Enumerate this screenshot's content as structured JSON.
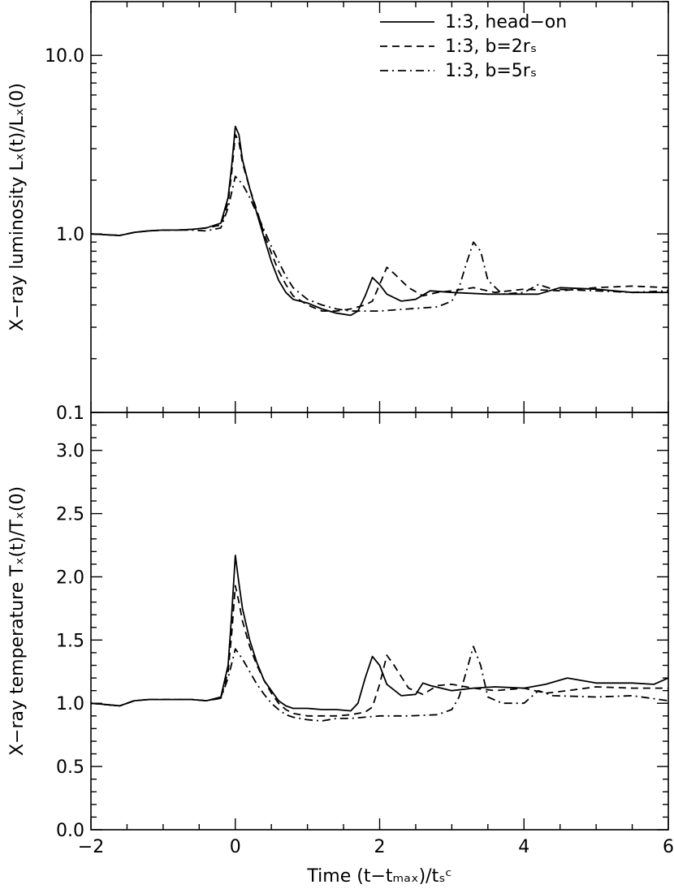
{
  "chart_data": [
    {
      "type": "line",
      "panel": "top",
      "yscale": "log",
      "xlim": [
        -2,
        6
      ],
      "ylim": [
        0.1,
        20
      ],
      "ylabel": "X−ray luminosity Lₓ(t)/Lₓ(0)",
      "xlabel": "",
      "yticks": [
        0.1,
        1.0,
        10.0
      ],
      "yticklabels": [
        "0.1",
        "1.0",
        "10.0"
      ],
      "grid": false,
      "legend": {
        "placement": "top-right",
        "entries": [
          "1:3, head−on",
          "1:3, b=2rₛ",
          "1:3, b=5rₛ"
        ]
      },
      "series": [
        {
          "name": "1:3, head−on",
          "dash": "solid",
          "points": [
            [
              -2,
              1.0
            ],
            [
              -1.8,
              0.99
            ],
            [
              -1.6,
              0.98
            ],
            [
              -1.4,
              1.02
            ],
            [
              -1.2,
              1.04
            ],
            [
              -1.0,
              1.05
            ],
            [
              -0.8,
              1.05
            ],
            [
              -0.6,
              1.06
            ],
            [
              -0.4,
              1.08
            ],
            [
              -0.2,
              1.15
            ],
            [
              -0.1,
              1.6
            ],
            [
              -0.05,
              2.4
            ],
            [
              0.0,
              4.0
            ],
            [
              0.05,
              3.6
            ],
            [
              0.1,
              2.6
            ],
            [
              0.2,
              1.8
            ],
            [
              0.3,
              1.3
            ],
            [
              0.4,
              0.95
            ],
            [
              0.5,
              0.7
            ],
            [
              0.6,
              0.55
            ],
            [
              0.7,
              0.47
            ],
            [
              0.8,
              0.43
            ],
            [
              1.0,
              0.41
            ],
            [
              1.2,
              0.38
            ],
            [
              1.4,
              0.36
            ],
            [
              1.6,
              0.35
            ],
            [
              1.7,
              0.37
            ],
            [
              1.8,
              0.45
            ],
            [
              1.9,
              0.57
            ],
            [
              2.0,
              0.52
            ],
            [
              2.1,
              0.46
            ],
            [
              2.3,
              0.42
            ],
            [
              2.5,
              0.43
            ],
            [
              2.7,
              0.48
            ],
            [
              3.0,
              0.47
            ],
            [
              3.5,
              0.46
            ],
            [
              4.0,
              0.46
            ],
            [
              4.2,
              0.46
            ],
            [
              4.5,
              0.5
            ],
            [
              5.0,
              0.49
            ],
            [
              5.5,
              0.47
            ],
            [
              6.0,
              0.47
            ]
          ]
        },
        {
          "name": "1:3, b=2rₛ",
          "dash": "dashed",
          "points": [
            [
              -2,
              1.0
            ],
            [
              -1.8,
              0.99
            ],
            [
              -1.6,
              0.98
            ],
            [
              -1.4,
              1.02
            ],
            [
              -1.2,
              1.04
            ],
            [
              -1.0,
              1.05
            ],
            [
              -0.8,
              1.05
            ],
            [
              -0.6,
              1.06
            ],
            [
              -0.4,
              1.08
            ],
            [
              -0.2,
              1.12
            ],
            [
              -0.1,
              1.5
            ],
            [
              -0.05,
              2.2
            ],
            [
              0.0,
              3.6
            ],
            [
              0.05,
              3.3
            ],
            [
              0.1,
              2.5
            ],
            [
              0.2,
              1.8
            ],
            [
              0.3,
              1.35
            ],
            [
              0.4,
              1.0
            ],
            [
              0.5,
              0.78
            ],
            [
              0.6,
              0.62
            ],
            [
              0.7,
              0.52
            ],
            [
              0.8,
              0.45
            ],
            [
              1.0,
              0.4
            ],
            [
              1.2,
              0.37
            ],
            [
              1.4,
              0.37
            ],
            [
              1.6,
              0.38
            ],
            [
              1.8,
              0.4
            ],
            [
              1.9,
              0.42
            ],
            [
              2.0,
              0.52
            ],
            [
              2.1,
              0.65
            ],
            [
              2.2,
              0.6
            ],
            [
              2.4,
              0.5
            ],
            [
              2.6,
              0.45
            ],
            [
              2.8,
              0.47
            ],
            [
              3.0,
              0.48
            ],
            [
              3.3,
              0.5
            ],
            [
              3.6,
              0.47
            ],
            [
              4.0,
              0.49
            ],
            [
              4.5,
              0.48
            ],
            [
              5.0,
              0.5
            ],
            [
              5.5,
              0.51
            ],
            [
              6.0,
              0.5
            ]
          ]
        },
        {
          "name": "1:3, b=5rₛ",
          "dash": "dashdot",
          "points": [
            [
              -2,
              1.0
            ],
            [
              -1.8,
              0.99
            ],
            [
              -1.6,
              0.98
            ],
            [
              -1.4,
              1.02
            ],
            [
              -1.2,
              1.04
            ],
            [
              -1.0,
              1.05
            ],
            [
              -0.8,
              1.05
            ],
            [
              -0.6,
              1.05
            ],
            [
              -0.4,
              1.04
            ],
            [
              -0.2,
              1.08
            ],
            [
              -0.1,
              1.4
            ],
            [
              0.0,
              2.1
            ],
            [
              0.1,
              1.9
            ],
            [
              0.2,
              1.6
            ],
            [
              0.3,
              1.3
            ],
            [
              0.4,
              1.05
            ],
            [
              0.5,
              0.85
            ],
            [
              0.6,
              0.7
            ],
            [
              0.7,
              0.58
            ],
            [
              0.8,
              0.5
            ],
            [
              1.0,
              0.43
            ],
            [
              1.2,
              0.4
            ],
            [
              1.4,
              0.38
            ],
            [
              1.6,
              0.37
            ],
            [
              1.8,
              0.37
            ],
            [
              2.0,
              0.37
            ],
            [
              2.4,
              0.38
            ],
            [
              2.8,
              0.39
            ],
            [
              3.0,
              0.42
            ],
            [
              3.1,
              0.5
            ],
            [
              3.2,
              0.68
            ],
            [
              3.3,
              0.9
            ],
            [
              3.4,
              0.8
            ],
            [
              3.5,
              0.55
            ],
            [
              3.7,
              0.46
            ],
            [
              4.0,
              0.47
            ],
            [
              4.2,
              0.52
            ],
            [
              4.4,
              0.49
            ],
            [
              5.0,
              0.48
            ],
            [
              5.5,
              0.47
            ],
            [
              6.0,
              0.48
            ]
          ]
        }
      ]
    },
    {
      "type": "line",
      "panel": "bottom",
      "yscale": "linear",
      "xlim": [
        -2,
        6
      ],
      "ylim": [
        0.0,
        3.3
      ],
      "ylabel": "X−ray temperature Tₓ(t)/Tₓ(0)",
      "xlabel": "Time (t−tₘₐₓ)/tₛᶜ",
      "yticks": [
        0.0,
        0.5,
        1.0,
        1.5,
        2.0,
        2.5,
        3.0
      ],
      "yticklabels": [
        "0.0",
        "0.5",
        "1.0",
        "1.5",
        "2.0",
        "2.5",
        "3.0"
      ],
      "xticks": [
        -2,
        0,
        2,
        4,
        6
      ],
      "xticklabels": [
        "−2",
        "0",
        "2",
        "4",
        "6"
      ],
      "grid": false,
      "series": [
        {
          "name": "1:3, head−on",
          "dash": "solid",
          "points": [
            [
              -2,
              1.0
            ],
            [
              -1.8,
              0.99
            ],
            [
              -1.6,
              0.98
            ],
            [
              -1.4,
              1.02
            ],
            [
              -1.2,
              1.03
            ],
            [
              -1.0,
              1.03
            ],
            [
              -0.8,
              1.03
            ],
            [
              -0.6,
              1.03
            ],
            [
              -0.4,
              1.02
            ],
            [
              -0.2,
              1.05
            ],
            [
              -0.1,
              1.3
            ],
            [
              -0.05,
              1.7
            ],
            [
              0.0,
              2.17
            ],
            [
              0.05,
              1.95
            ],
            [
              0.1,
              1.75
            ],
            [
              0.2,
              1.5
            ],
            [
              0.3,
              1.32
            ],
            [
              0.4,
              1.18
            ],
            [
              0.5,
              1.1
            ],
            [
              0.6,
              1.02
            ],
            [
              0.7,
              0.98
            ],
            [
              0.8,
              0.96
            ],
            [
              1.0,
              0.96
            ],
            [
              1.2,
              0.95
            ],
            [
              1.4,
              0.95
            ],
            [
              1.6,
              0.94
            ],
            [
              1.7,
              1.0
            ],
            [
              1.8,
              1.2
            ],
            [
              1.9,
              1.37
            ],
            [
              2.0,
              1.3
            ],
            [
              2.1,
              1.15
            ],
            [
              2.3,
              1.06
            ],
            [
              2.5,
              1.07
            ],
            [
              2.6,
              1.16
            ],
            [
              2.7,
              1.14
            ],
            [
              3.0,
              1.1
            ],
            [
              3.3,
              1.12
            ],
            [
              3.6,
              1.13
            ],
            [
              4.0,
              1.12
            ],
            [
              4.3,
              1.15
            ],
            [
              4.6,
              1.2
            ],
            [
              5.0,
              1.16
            ],
            [
              5.5,
              1.16
            ],
            [
              5.8,
              1.15
            ],
            [
              6.0,
              1.2
            ]
          ]
        },
        {
          "name": "1:3, b=2rₛ",
          "dash": "dashed",
          "points": [
            [
              -2,
              1.0
            ],
            [
              -1.8,
              0.99
            ],
            [
              -1.6,
              0.98
            ],
            [
              -1.4,
              1.02
            ],
            [
              -1.2,
              1.03
            ],
            [
              -1.0,
              1.03
            ],
            [
              -0.8,
              1.03
            ],
            [
              -0.6,
              1.03
            ],
            [
              -0.4,
              1.02
            ],
            [
              -0.2,
              1.04
            ],
            [
              -0.1,
              1.25
            ],
            [
              -0.05,
              1.55
            ],
            [
              0.0,
              1.93
            ],
            [
              0.05,
              1.8
            ],
            [
              0.1,
              1.65
            ],
            [
              0.2,
              1.45
            ],
            [
              0.3,
              1.3
            ],
            [
              0.4,
              1.18
            ],
            [
              0.5,
              1.08
            ],
            [
              0.6,
              1.0
            ],
            [
              0.7,
              0.95
            ],
            [
              0.8,
              0.92
            ],
            [
              1.0,
              0.9
            ],
            [
              1.2,
              0.9
            ],
            [
              1.4,
              0.9
            ],
            [
              1.6,
              0.91
            ],
            [
              1.8,
              0.93
            ],
            [
              1.9,
              0.97
            ],
            [
              2.0,
              1.15
            ],
            [
              2.1,
              1.38
            ],
            [
              2.2,
              1.3
            ],
            [
              2.4,
              1.12
            ],
            [
              2.6,
              1.07
            ],
            [
              2.8,
              1.14
            ],
            [
              3.0,
              1.15
            ],
            [
              3.3,
              1.12
            ],
            [
              3.6,
              1.1
            ],
            [
              4.0,
              1.12
            ],
            [
              4.3,
              1.08
            ],
            [
              4.6,
              1.1
            ],
            [
              5.0,
              1.13
            ],
            [
              5.5,
              1.12
            ],
            [
              6.0,
              1.12
            ]
          ]
        },
        {
          "name": "1:3, b=5rₛ",
          "dash": "dashdot",
          "points": [
            [
              -2,
              1.0
            ],
            [
              -1.8,
              0.99
            ],
            [
              -1.6,
              0.98
            ],
            [
              -1.4,
              1.02
            ],
            [
              -1.2,
              1.03
            ],
            [
              -1.0,
              1.03
            ],
            [
              -0.8,
              1.03
            ],
            [
              -0.6,
              1.03
            ],
            [
              -0.4,
              1.02
            ],
            [
              -0.2,
              1.04
            ],
            [
              -0.1,
              1.2
            ],
            [
              0.0,
              1.43
            ],
            [
              0.1,
              1.35
            ],
            [
              0.2,
              1.25
            ],
            [
              0.3,
              1.15
            ],
            [
              0.4,
              1.07
            ],
            [
              0.5,
              1.0
            ],
            [
              0.6,
              0.95
            ],
            [
              0.7,
              0.91
            ],
            [
              0.8,
              0.89
            ],
            [
              1.0,
              0.87
            ],
            [
              1.2,
              0.86
            ],
            [
              1.4,
              0.88
            ],
            [
              1.6,
              0.88
            ],
            [
              2.0,
              0.9
            ],
            [
              2.4,
              0.9
            ],
            [
              2.8,
              0.91
            ],
            [
              3.0,
              0.95
            ],
            [
              3.1,
              1.05
            ],
            [
              3.2,
              1.25
            ],
            [
              3.3,
              1.45
            ],
            [
              3.4,
              1.3
            ],
            [
              3.5,
              1.05
            ],
            [
              3.7,
              1.0
            ],
            [
              4.0,
              1.0
            ],
            [
              4.2,
              1.1
            ],
            [
              4.4,
              1.06
            ],
            [
              5.0,
              1.05
            ],
            [
              5.5,
              1.06
            ],
            [
              6.0,
              1.02
            ]
          ]
        }
      ]
    }
  ]
}
